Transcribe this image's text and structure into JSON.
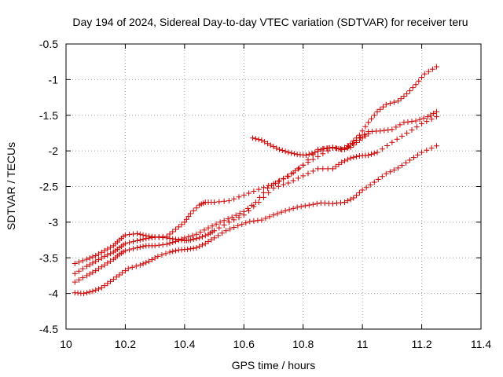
{
  "chart_data": {
    "type": "scatter",
    "title": "Day 194 of 2024, Sidereal Day-to-day VTEC variation (SDTVAR) for receiver teru",
    "xlabel": "GPS time / hours",
    "ylabel": "SDTVAR / TECUs",
    "xlim": [
      10,
      11.4
    ],
    "ylim": [
      -4.5,
      -0.5
    ],
    "xticks": [
      "10",
      "10.2",
      "10.4",
      "10.6",
      "10.8",
      "11",
      "11.2",
      "11.4"
    ],
    "yticks": [
      "-0.5",
      "-1",
      "-1.5",
      "-2",
      "-2.5",
      "-3",
      "-3.5",
      "-4",
      "-4.5"
    ],
    "grid": true,
    "marker": "+",
    "color": "#cc0000",
    "series": [
      {
        "x": [
          10.03,
          10.07,
          10.1,
          10.13,
          10.16,
          10.18,
          10.2,
          10.24,
          10.27,
          10.3,
          10.34,
          10.37,
          10.4,
          10.42,
          10.45,
          10.47,
          10.5,
          10.55,
          10.6,
          10.65,
          10.7,
          10.75,
          10.8,
          10.85,
          10.9,
          10.93,
          10.96,
          10.99,
          11.02,
          11.05,
          11.08,
          11.12,
          11.15,
          11.18,
          11.21,
          11.25
        ],
        "y": [
          -3.58,
          -3.52,
          -3.47,
          -3.4,
          -3.33,
          -3.25,
          -3.18,
          -3.16,
          -3.19,
          -3.21,
          -3.2,
          -3.1,
          -3.0,
          -2.88,
          -2.76,
          -2.72,
          -2.72,
          -2.7,
          -2.62,
          -2.54,
          -2.46,
          -2.36,
          -2.2,
          -1.98,
          -1.95,
          -1.98,
          -1.9,
          -1.78,
          -1.6,
          -1.45,
          -1.35,
          -1.3,
          -1.2,
          -1.07,
          -0.92,
          -0.82
        ]
      },
      {
        "x": [
          10.03,
          10.07,
          10.1,
          10.13,
          10.16,
          10.18,
          10.2,
          10.24,
          10.27,
          10.3,
          10.34,
          10.37,
          10.4,
          10.42,
          10.45,
          10.48,
          10.5,
          10.55,
          10.6,
          10.65,
          10.7,
          10.75,
          10.8,
          10.85,
          10.9,
          10.93,
          10.96,
          10.99,
          11.02,
          11.05,
          11.1,
          11.15,
          11.2,
          11.25
        ],
        "y": [
          -3.72,
          -3.62,
          -3.55,
          -3.48,
          -3.42,
          -3.36,
          -3.3,
          -3.26,
          -3.23,
          -3.21,
          -3.22,
          -3.24,
          -3.26,
          -3.25,
          -3.22,
          -3.17,
          -3.12,
          -3.0,
          -2.9,
          -2.72,
          -2.52,
          -2.45,
          -2.35,
          -2.25,
          -2.25,
          -2.16,
          -2.1,
          -2.07,
          -2.06,
          -2.02,
          -1.88,
          -1.75,
          -1.62,
          -1.52
        ]
      },
      {
        "x": [
          10.03,
          10.07,
          10.1,
          10.13,
          10.16,
          10.18,
          10.2,
          10.24,
          10.27,
          10.3,
          10.34,
          10.37,
          10.4,
          10.44,
          10.48,
          10.52,
          10.56,
          10.6,
          10.64,
          10.68,
          10.72,
          10.76,
          10.8,
          10.85,
          10.9,
          10.94,
          10.98,
          11.02,
          11.06,
          11.1,
          11.14,
          11.18,
          11.22,
          11.25
        ],
        "y": [
          -3.84,
          -3.75,
          -3.68,
          -3.6,
          -3.52,
          -3.45,
          -3.4,
          -3.36,
          -3.33,
          -3.33,
          -3.31,
          -3.27,
          -3.22,
          -3.17,
          -3.08,
          -3.0,
          -2.93,
          -2.85,
          -2.72,
          -2.52,
          -2.42,
          -2.32,
          -2.2,
          -2.08,
          -1.96,
          -1.98,
          -1.85,
          -1.73,
          -1.72,
          -1.7,
          -1.6,
          -1.58,
          -1.52,
          -1.45
        ]
      },
      {
        "x": [
          10.03,
          10.06,
          10.09,
          10.12,
          10.15,
          10.18,
          10.21,
          10.25,
          10.28,
          10.31,
          10.35,
          10.38,
          10.41,
          10.44,
          10.47,
          10.5,
          10.54,
          10.58,
          10.62,
          10.66,
          10.7,
          10.74,
          10.78,
          10.82,
          10.86,
          10.9,
          10.94,
          10.97,
          11.0,
          11.04,
          11.08,
          11.12,
          11.16,
          11.2,
          11.25
        ],
        "y": [
          -3.99,
          -4.0,
          -3.97,
          -3.92,
          -3.83,
          -3.74,
          -3.65,
          -3.6,
          -3.55,
          -3.48,
          -3.42,
          -3.39,
          -3.38,
          -3.36,
          -3.3,
          -3.22,
          -3.12,
          -3.05,
          -2.99,
          -2.97,
          -2.9,
          -2.84,
          -2.79,
          -2.76,
          -2.73,
          -2.74,
          -2.72,
          -2.66,
          -2.55,
          -2.44,
          -2.32,
          -2.24,
          -2.13,
          -2.02,
          -1.93
        ]
      },
      {
        "x": [
          10.63,
          10.66,
          10.69,
          10.72,
          10.75,
          10.78,
          10.81,
          10.84,
          10.87,
          10.9,
          10.93,
          10.96,
          10.99,
          11.02
        ],
        "y": [
          -1.82,
          -1.85,
          -1.92,
          -1.98,
          -2.02,
          -2.05,
          -2.06,
          -2.02,
          -1.97,
          -1.95,
          -1.98,
          -1.95,
          -1.85,
          -1.76
        ]
      }
    ]
  }
}
